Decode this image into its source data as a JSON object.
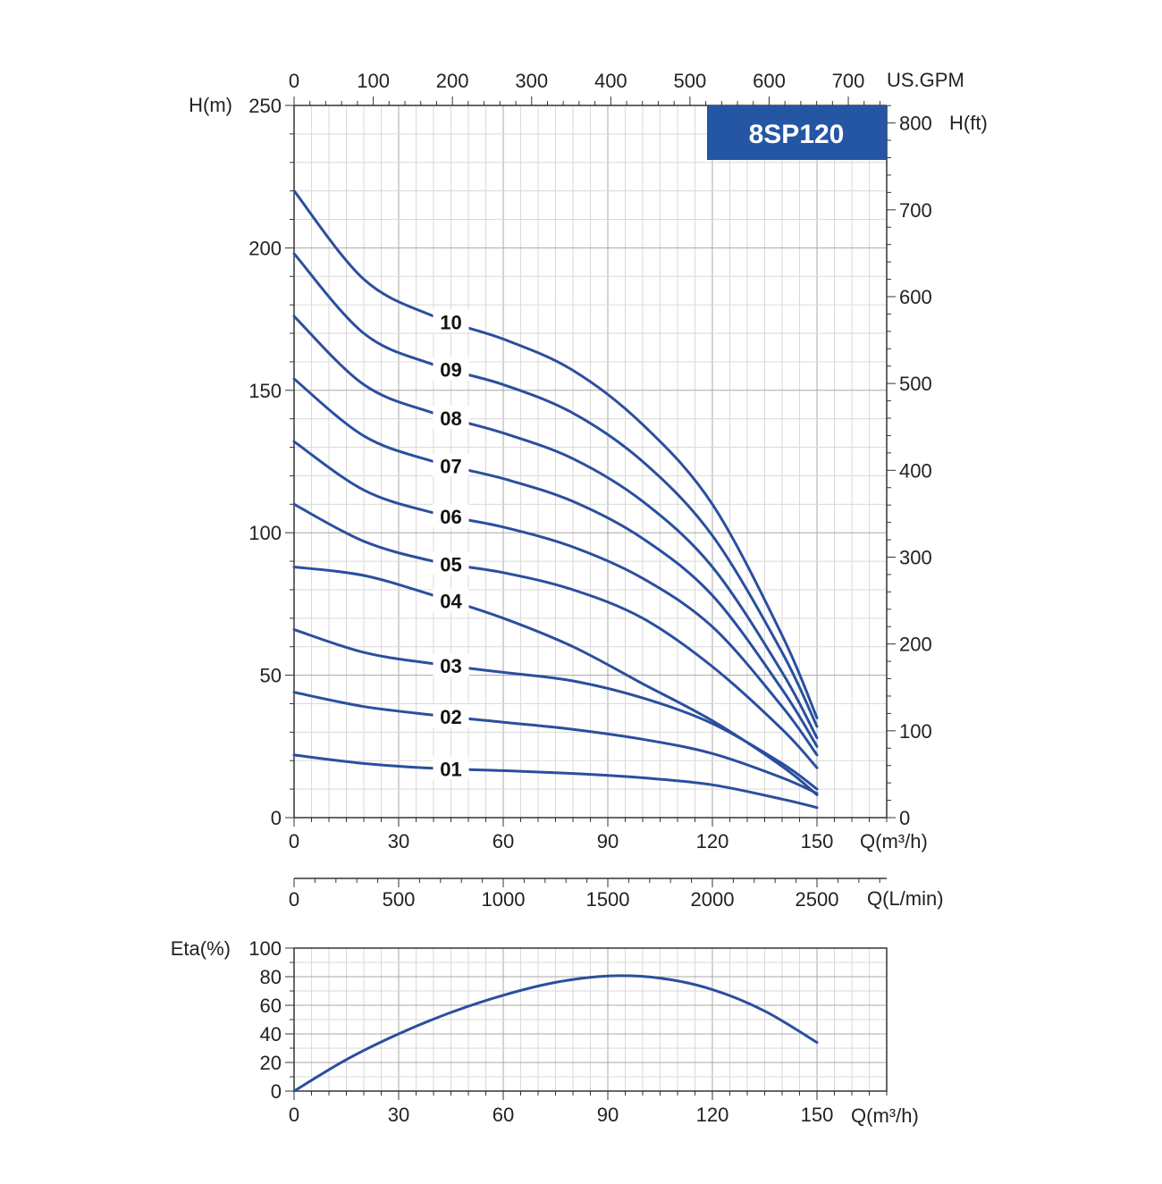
{
  "chart_data": [
    {
      "type": "line",
      "name_label": "8SP120",
      "badge_color": "#2456a4",
      "curve_color": "#2a4f9e",
      "grid": true,
      "xlabel": "Q(m³/h)",
      "ylabel": "H(m)",
      "y2label": "H(ft)",
      "x2label": "US.GPM",
      "x3label": "Q(L/min)",
      "xlim": [
        0,
        170
      ],
      "ylim": [
        0,
        250
      ],
      "x_ticks": [
        "0",
        "30",
        "60",
        "90",
        "120",
        "150"
      ],
      "y_ticks": [
        "0",
        "50",
        "100",
        "150",
        "200",
        "250"
      ],
      "y2_ticks": [
        "0",
        "100",
        "200",
        "300",
        "400",
        "500",
        "600",
        "700",
        "800"
      ],
      "gpm_ticks": [
        "0",
        "100",
        "200",
        "300",
        "400",
        "500",
        "600",
        "700"
      ],
      "lmin_ticks": [
        "0",
        "500",
        "1000",
        "1500",
        "2000",
        "2500"
      ],
      "series": [
        {
          "name": "01",
          "x": [
            0,
            20,
            40,
            60,
            80,
            100,
            120,
            140,
            150
          ],
          "y": [
            22,
            19,
            17.3,
            16.5,
            15.5,
            14,
            11.5,
            6.5,
            3.5
          ]
        },
        {
          "name": "02",
          "x": [
            0,
            20,
            40,
            60,
            80,
            100,
            120,
            140,
            150
          ],
          "y": [
            44,
            39,
            36,
            33.5,
            31,
            27.5,
            22.5,
            14,
            8.5
          ]
        },
        {
          "name": "03",
          "x": [
            0,
            20,
            40,
            60,
            80,
            100,
            120,
            140,
            150
          ],
          "y": [
            66,
            58,
            54,
            51,
            48,
            42,
            33,
            19,
            10
          ]
        },
        {
          "name": "04",
          "x": [
            0,
            20,
            40,
            60,
            80,
            100,
            120,
            140,
            150
          ],
          "y": [
            88,
            85,
            78,
            70,
            60,
            47,
            34,
            18,
            8
          ]
        },
        {
          "name": "05",
          "x": [
            0,
            20,
            40,
            60,
            80,
            100,
            120,
            140,
            150
          ],
          "y": [
            110,
            97,
            90,
            86,
            80,
            70,
            53,
            31,
            17.5
          ]
        },
        {
          "name": "06",
          "x": [
            0,
            20,
            40,
            60,
            80,
            100,
            120,
            140,
            150
          ],
          "y": [
            132,
            115,
            107,
            102,
            95,
            84,
            67,
            39,
            22
          ]
        },
        {
          "name": "07",
          "x": [
            0,
            20,
            40,
            60,
            80,
            100,
            120,
            140,
            150
          ],
          "y": [
            154,
            134,
            125,
            119,
            111,
            98,
            78,
            45,
            25
          ]
        },
        {
          "name": "08",
          "x": [
            0,
            20,
            40,
            60,
            80,
            100,
            120,
            140,
            150
          ],
          "y": [
            176,
            152,
            142,
            135,
            126,
            111,
            88,
            51,
            28
          ]
        },
        {
          "name": "09",
          "x": [
            0,
            20,
            40,
            60,
            80,
            100,
            120,
            140,
            150
          ],
          "y": [
            198,
            170,
            159,
            152,
            142,
            125,
            99,
            58,
            32
          ]
        },
        {
          "name": "10",
          "x": [
            0,
            20,
            40,
            60,
            80,
            100,
            120,
            140,
            150
          ],
          "y": [
            220,
            189,
            176,
            168,
            157,
            138,
            110,
            64,
            35
          ]
        }
      ]
    },
    {
      "type": "line",
      "grid": true,
      "xlabel": "Q(m³/h)",
      "ylabel": "Eta(%)",
      "xlim": [
        0,
        170
      ],
      "ylim": [
        0,
        100
      ],
      "x_ticks": [
        "0",
        "30",
        "60",
        "90",
        "120",
        "150"
      ],
      "y_ticks": [
        "0",
        "20",
        "40",
        "60",
        "80",
        "100"
      ],
      "series": [
        {
          "x": [
            0,
            15,
            30,
            45,
            60,
            75,
            90,
            105,
            120,
            135,
            150
          ],
          "y": [
            0,
            22,
            40,
            55,
            67,
            76,
            80.5,
            79,
            71,
            56,
            34
          ]
        }
      ]
    }
  ]
}
